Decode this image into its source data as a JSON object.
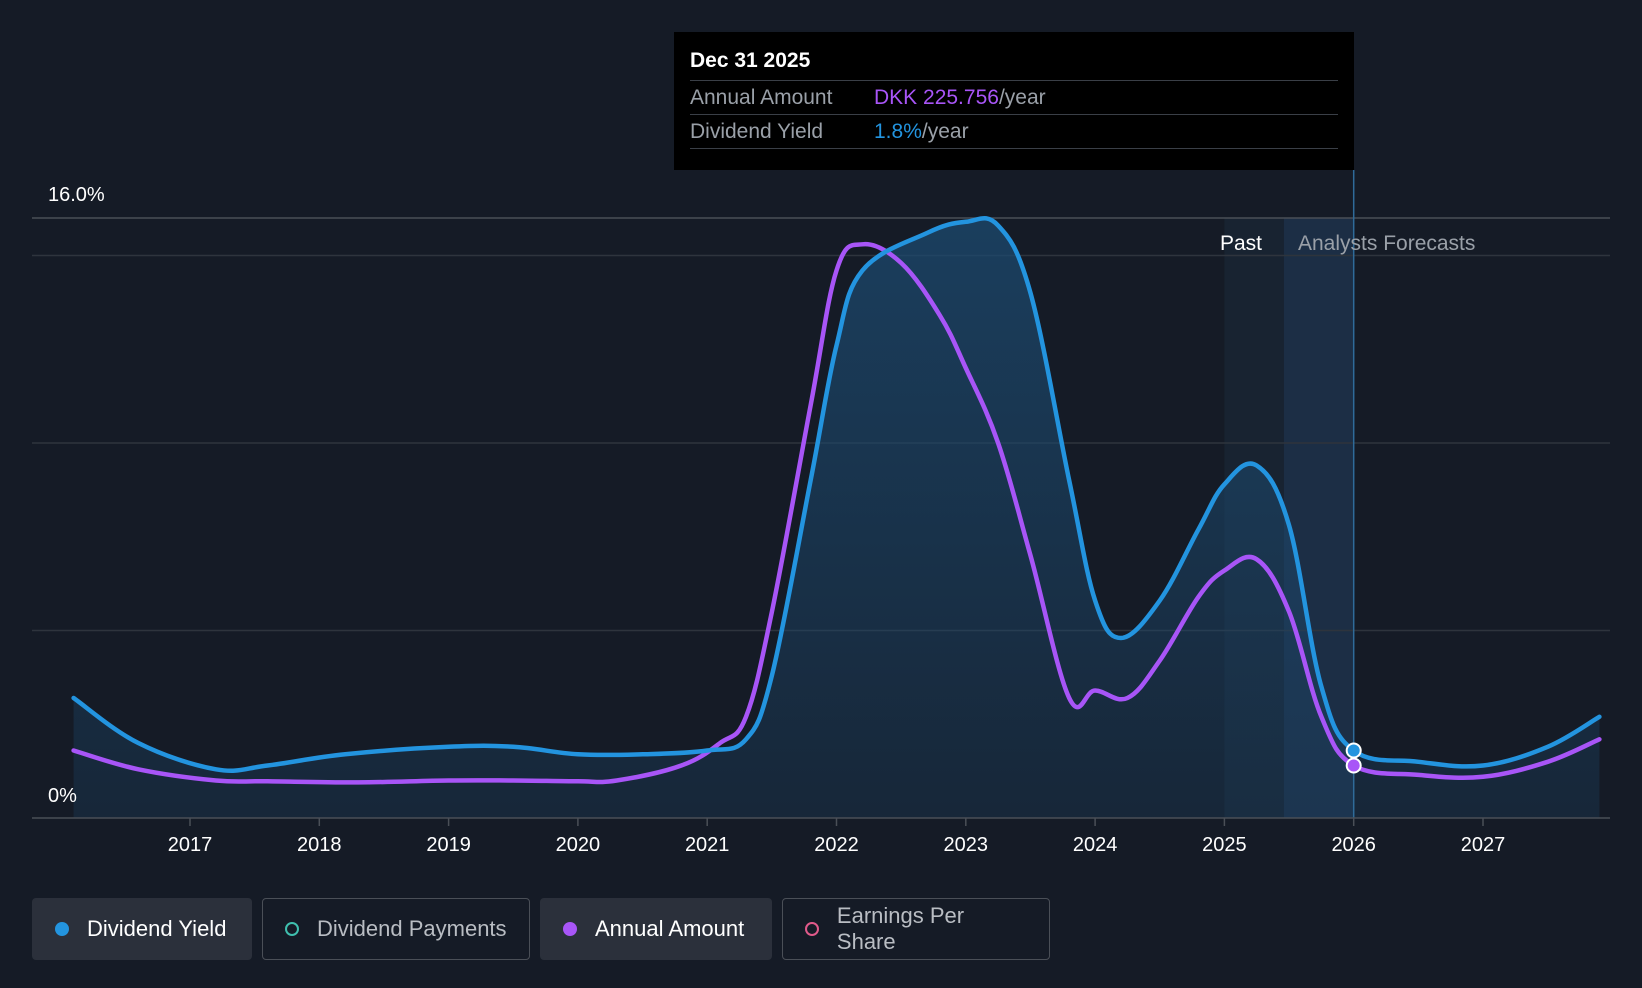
{
  "tooltip": {
    "date": "Dec 31 2025",
    "rows": [
      {
        "label": "Annual Amount",
        "value": "DKK 225.756",
        "unit": "/year",
        "color": "#a855f7"
      },
      {
        "label": "Dividend Yield",
        "value": "1.8%",
        "unit": "/year",
        "color": "#2394df"
      }
    ]
  },
  "legend": [
    {
      "label": "Dividend Yield",
      "color": "#2394df",
      "active": true,
      "hollow": false
    },
    {
      "label": "Dividend Payments",
      "color": "#3fbfae",
      "active": false,
      "hollow": true
    },
    {
      "label": "Annual Amount",
      "color": "#a855f7",
      "active": true,
      "hollow": false
    },
    {
      "label": "Earnings Per Share",
      "color": "#e05a8a",
      "active": false,
      "hollow": true
    }
  ],
  "chart_data": {
    "type": "area",
    "y_top_label": "16.0%",
    "y_bottom_label": "0%",
    "ylim": [
      0,
      16
    ],
    "xlim": [
      2015.6,
      2027.9
    ],
    "x_ticks": [
      "2017",
      "2018",
      "2019",
      "2020",
      "2021",
      "2022",
      "2023",
      "2024",
      "2025",
      "2026",
      "2027"
    ],
    "past_label": "Past",
    "forecast_label": "Analysts Forecasts",
    "past_region": [
      2025.0,
      2025.46
    ],
    "forecast_region": [
      2025.46,
      2026.0
    ],
    "cursor_x": 2026.0,
    "grid": true,
    "series": [
      {
        "name": "Dividend Yield",
        "color": "#2394df",
        "points": [
          [
            2016.1,
            3.2
          ],
          [
            2016.6,
            2.0
          ],
          [
            2017.2,
            1.3
          ],
          [
            2017.6,
            1.4
          ],
          [
            2018.2,
            1.7
          ],
          [
            2019.0,
            1.9
          ],
          [
            2019.5,
            1.9
          ],
          [
            2020.0,
            1.7
          ],
          [
            2020.5,
            1.7
          ],
          [
            2021.0,
            1.8
          ],
          [
            2021.3,
            2.1
          ],
          [
            2021.5,
            3.8
          ],
          [
            2021.8,
            9.0
          ],
          [
            2022.0,
            12.6
          ],
          [
            2022.2,
            14.6
          ],
          [
            2022.7,
            15.6
          ],
          [
            2023.0,
            15.9
          ],
          [
            2023.25,
            15.8
          ],
          [
            2023.5,
            14.0
          ],
          [
            2023.8,
            9.0
          ],
          [
            2024.0,
            5.8
          ],
          [
            2024.2,
            4.8
          ],
          [
            2024.5,
            5.8
          ],
          [
            2024.8,
            7.7
          ],
          [
            2025.0,
            8.9
          ],
          [
            2025.25,
            9.4
          ],
          [
            2025.5,
            7.8
          ],
          [
            2025.75,
            3.5
          ],
          [
            2026.0,
            1.8
          ],
          [
            2026.5,
            1.5
          ],
          [
            2027.0,
            1.4
          ],
          [
            2027.5,
            1.9
          ],
          [
            2027.9,
            2.7
          ]
        ]
      },
      {
        "name": "Annual Amount",
        "color": "#a855f7",
        "points": [
          [
            2016.1,
            1.8
          ],
          [
            2016.6,
            1.3
          ],
          [
            2017.2,
            1.0
          ],
          [
            2017.6,
            0.98
          ],
          [
            2018.3,
            0.95
          ],
          [
            2019.0,
            1.0
          ],
          [
            2019.5,
            1.0
          ],
          [
            2020.0,
            0.98
          ],
          [
            2020.3,
            1.0
          ],
          [
            2020.8,
            1.4
          ],
          [
            2021.1,
            2.0
          ],
          [
            2021.3,
            2.7
          ],
          [
            2021.5,
            5.5
          ],
          [
            2021.8,
            11.0
          ],
          [
            2022.0,
            14.6
          ],
          [
            2022.2,
            15.3
          ],
          [
            2022.5,
            14.8
          ],
          [
            2022.8,
            13.4
          ],
          [
            2023.0,
            12.0
          ],
          [
            2023.25,
            10.0
          ],
          [
            2023.5,
            7.0
          ],
          [
            2023.8,
            3.2
          ],
          [
            2024.0,
            3.4
          ],
          [
            2024.25,
            3.2
          ],
          [
            2024.5,
            4.2
          ],
          [
            2024.8,
            5.9
          ],
          [
            2025.0,
            6.6
          ],
          [
            2025.25,
            6.9
          ],
          [
            2025.5,
            5.5
          ],
          [
            2025.75,
            2.7
          ],
          [
            2026.0,
            1.4
          ],
          [
            2026.5,
            1.15
          ],
          [
            2027.0,
            1.1
          ],
          [
            2027.5,
            1.5
          ],
          [
            2027.9,
            2.1
          ]
        ]
      }
    ]
  }
}
